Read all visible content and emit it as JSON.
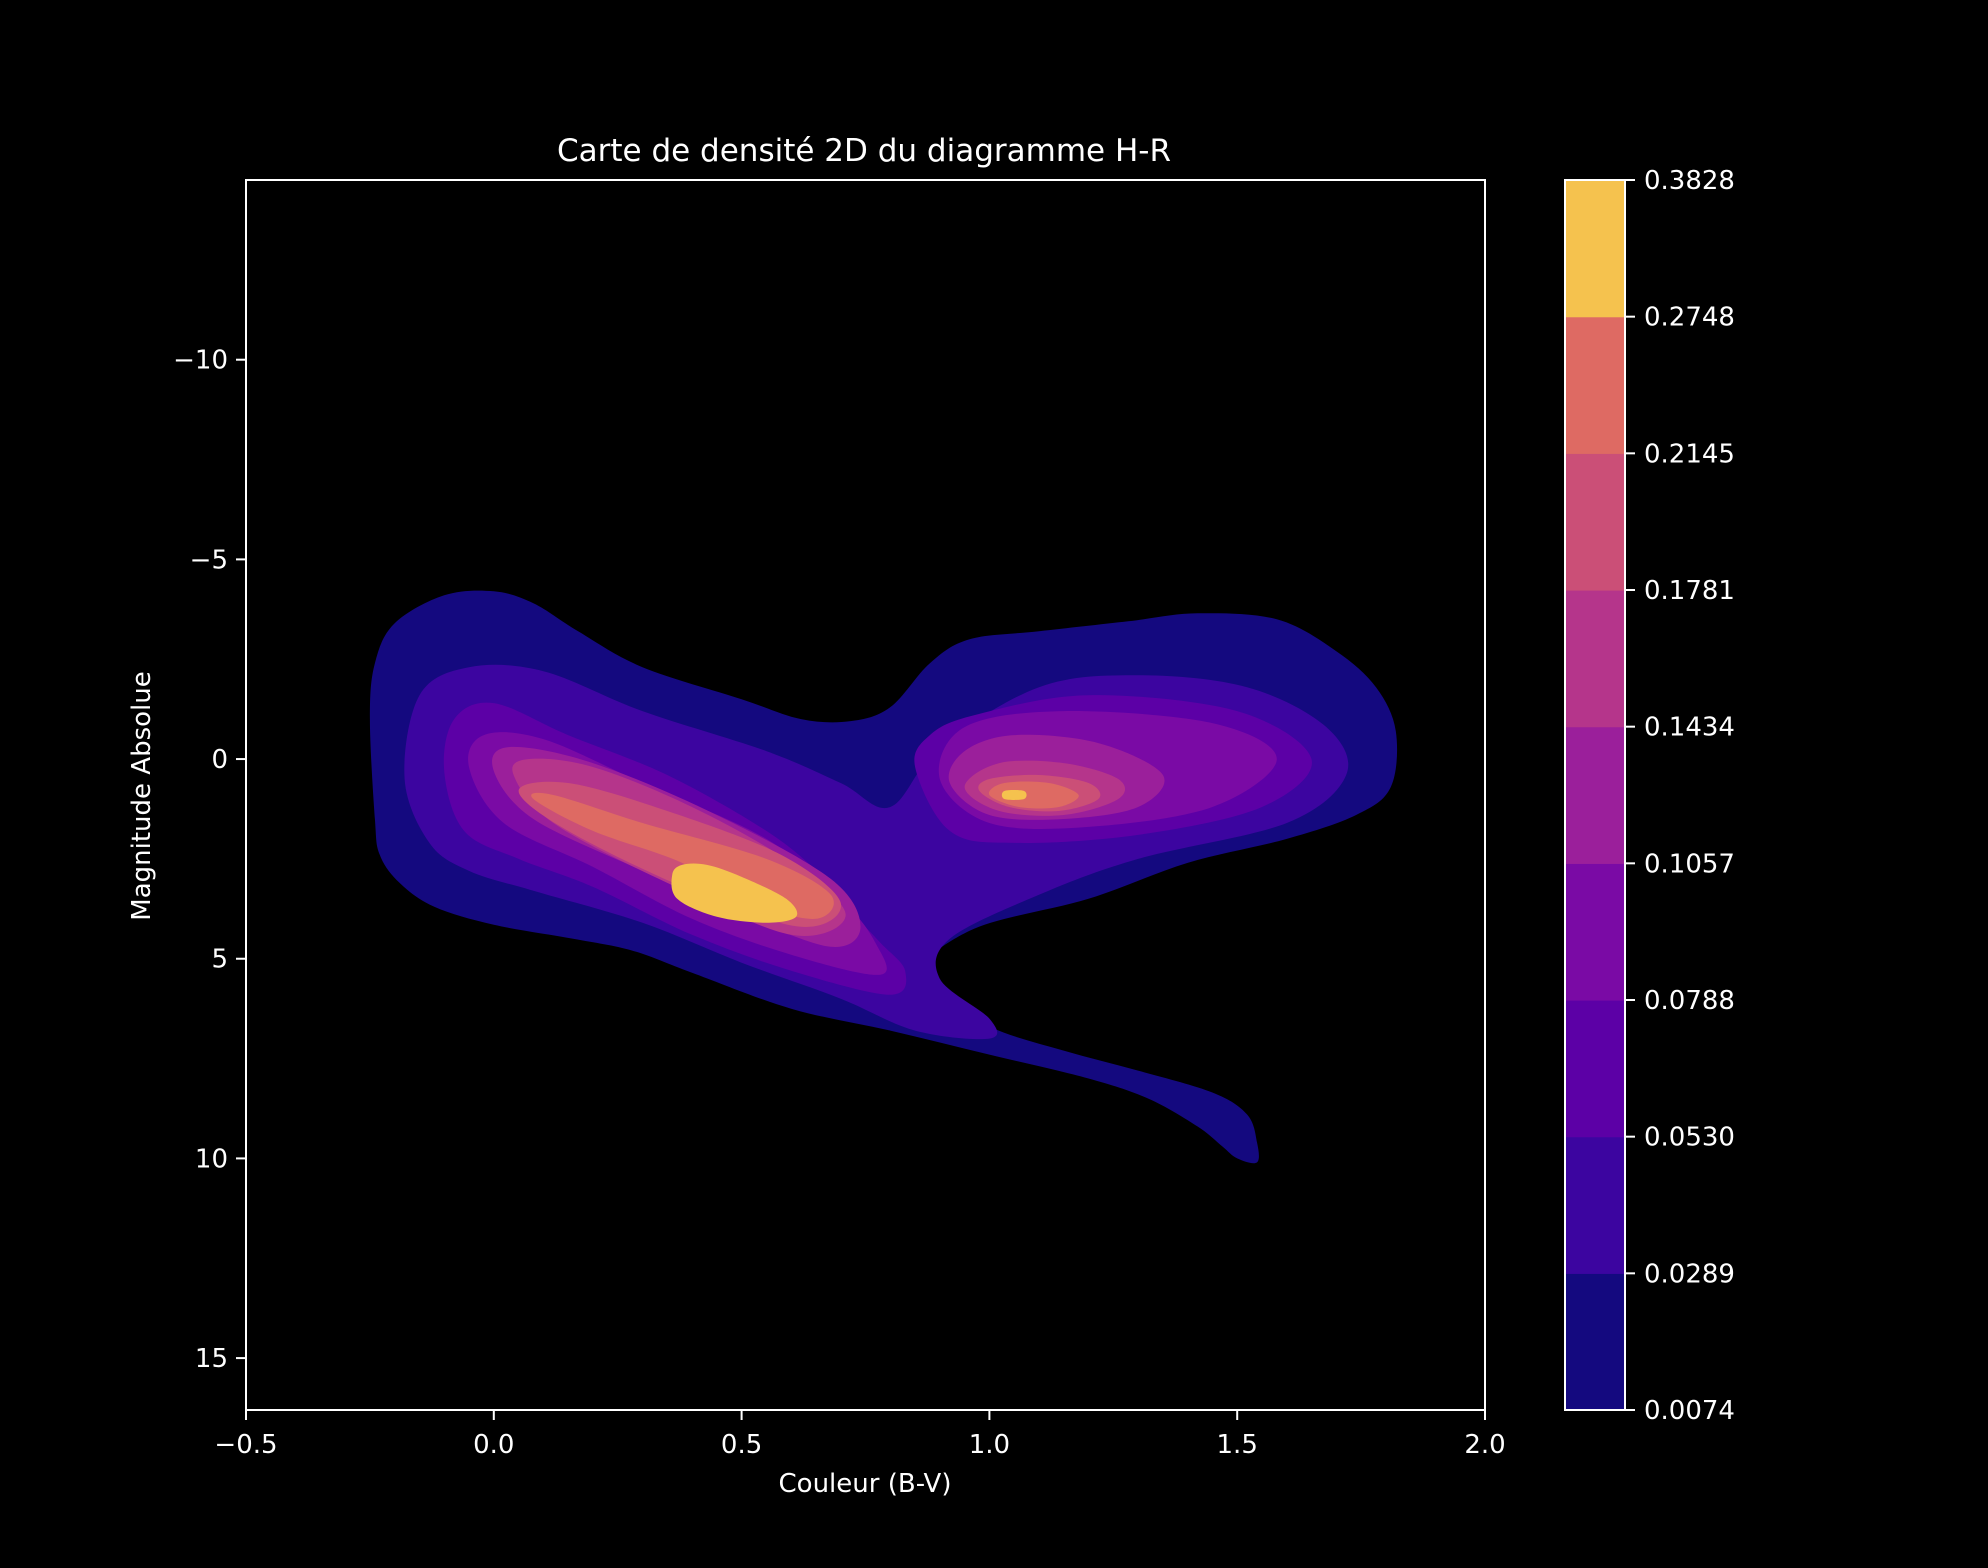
{
  "chart_data": {
    "type": "heatmap",
    "subtype": "filled-contour-density",
    "title": "Carte de densité 2D du diagramme H-R",
    "xlabel": "Couleur (B-V)",
    "ylabel": "Magnitude Absolue",
    "xlim": [
      -0.5,
      2.0
    ],
    "ylim": [
      16.3,
      -14.5
    ],
    "y_inverted": true,
    "grid": false,
    "x_ticks": [
      {
        "value": -0.5,
        "label": "−0.5"
      },
      {
        "value": 0.0,
        "label": "0.0"
      },
      {
        "value": 0.5,
        "label": "0.5"
      },
      {
        "value": 1.0,
        "label": "1.0"
      },
      {
        "value": 1.5,
        "label": "1.5"
      },
      {
        "value": 2.0,
        "label": "2.0"
      }
    ],
    "y_ticks": [
      {
        "value": -10,
        "label": "−10"
      },
      {
        "value": -5,
        "label": "−5"
      },
      {
        "value": 0,
        "label": "0"
      },
      {
        "value": 5,
        "label": "5"
      },
      {
        "value": 10,
        "label": "10"
      },
      {
        "value": 15,
        "label": "15"
      }
    ],
    "colorbar": {
      "levels": [
        "0.0074",
        "0.0289",
        "0.0530",
        "0.0788",
        "0.1057",
        "0.1434",
        "0.1781",
        "0.2145",
        "0.2748",
        "0.3828"
      ],
      "colors": [
        "#14097f",
        "#3c05a0",
        "#5c00a6",
        "#7a0aa5",
        "#9b1f9b",
        "#b5358b",
        "#cb4f77",
        "#de6a63",
        "#f5c24e"
      ]
    },
    "contours": [
      {
        "level": 0.0074,
        "color": "#14097f",
        "polygons": [
          [
            [
              -0.24,
              1.5
            ],
            [
              -0.23,
              2.4
            ],
            [
              -0.19,
              3.1
            ],
            [
              -0.12,
              3.7
            ],
            [
              0.0,
              4.15
            ],
            [
              0.16,
              4.5
            ],
            [
              0.28,
              4.8
            ],
            [
              0.4,
              5.35
            ],
            [
              0.6,
              6.25
            ],
            [
              0.8,
              6.8
            ],
            [
              1.0,
              7.4
            ],
            [
              1.2,
              8.0
            ],
            [
              1.32,
              8.5
            ],
            [
              1.42,
              9.2
            ],
            [
              1.47,
              9.7
            ],
            [
              1.5,
              10.0
            ],
            [
              1.54,
              10.1
            ],
            [
              1.54,
              9.6
            ],
            [
              1.52,
              8.9
            ],
            [
              1.45,
              8.35
            ],
            [
              1.3,
              7.8
            ],
            [
              1.15,
              7.3
            ],
            [
              1.0,
              6.7
            ],
            [
              0.85,
              5.6
            ],
            [
              0.96,
              4.3
            ],
            [
              1.2,
              3.5
            ],
            [
              1.4,
              2.6
            ],
            [
              1.6,
              2.0
            ],
            [
              1.74,
              1.4
            ],
            [
              1.81,
              0.7
            ],
            [
              1.82,
              -0.7
            ],
            [
              1.78,
              -1.8
            ],
            [
              1.7,
              -2.7
            ],
            [
              1.58,
              -3.5
            ],
            [
              1.42,
              -3.65
            ],
            [
              1.28,
              -3.45
            ],
            [
              1.1,
              -3.2
            ],
            [
              0.96,
              -3.0
            ],
            [
              0.88,
              -2.4
            ],
            [
              0.8,
              -1.3
            ],
            [
              0.72,
              -0.95
            ],
            [
              0.62,
              -1.0
            ],
            [
              0.5,
              -1.5
            ],
            [
              0.3,
              -2.3
            ],
            [
              0.17,
              -3.2
            ],
            [
              0.08,
              -3.9
            ],
            [
              0.0,
              -4.2
            ],
            [
              -0.1,
              -4.1
            ],
            [
              -0.2,
              -3.4
            ],
            [
              -0.24,
              -2.4
            ],
            [
              -0.25,
              -1.0
            ]
          ]
        ]
      },
      {
        "level": 0.0289,
        "color": "#3c05a0",
        "polygons": [
          [
            [
              -0.18,
              0.5
            ],
            [
              -0.13,
              2.1
            ],
            [
              -0.05,
              2.8
            ],
            [
              0.08,
              3.3
            ],
            [
              0.3,
              4.1
            ],
            [
              0.5,
              5.1
            ],
            [
              0.7,
              6.0
            ],
            [
              0.85,
              6.8
            ],
            [
              1.0,
              7.0
            ],
            [
              1.0,
              6.5
            ],
            [
              0.9,
              5.5
            ],
            [
              0.92,
              4.5
            ],
            [
              1.1,
              3.4
            ],
            [
              1.3,
              2.5
            ],
            [
              1.6,
              1.6
            ],
            [
              1.72,
              0.4
            ],
            [
              1.68,
              -0.8
            ],
            [
              1.52,
              -1.8
            ],
            [
              1.3,
              -2.1
            ],
            [
              1.1,
              -1.8
            ],
            [
              0.9,
              -0.3
            ],
            [
              0.8,
              1.2
            ],
            [
              0.7,
              0.6
            ],
            [
              0.55,
              -0.2
            ],
            [
              0.3,
              -1.2
            ],
            [
              0.1,
              -2.2
            ],
            [
              -0.05,
              -2.3
            ],
            [
              -0.15,
              -1.6
            ]
          ]
        ]
      },
      {
        "level": 0.053,
        "color": "#5c00a6",
        "polygons": [
          [
            [
              -0.1,
              0.3
            ],
            [
              -0.06,
              1.8
            ],
            [
              0.05,
              2.5
            ],
            [
              0.2,
              3.2
            ],
            [
              0.4,
              4.4
            ],
            [
              0.6,
              5.3
            ],
            [
              0.8,
              5.9
            ],
            [
              0.83,
              5.3
            ],
            [
              0.78,
              4.6
            ],
            [
              0.72,
              3.8
            ],
            [
              0.66,
              2.9
            ],
            [
              0.55,
              1.8
            ],
            [
              0.35,
              0.4
            ],
            [
              0.15,
              -0.6
            ],
            [
              0.0,
              -1.4
            ],
            [
              -0.08,
              -1.0
            ]
          ],
          [
            [
              0.85,
              0.2
            ],
            [
              0.92,
              1.8
            ],
            [
              1.05,
              2.1
            ],
            [
              1.3,
              1.9
            ],
            [
              1.55,
              1.2
            ],
            [
              1.65,
              0.0
            ],
            [
              1.5,
              -1.2
            ],
            [
              1.2,
              -1.6
            ],
            [
              0.97,
              -1.1
            ],
            [
              0.88,
              -0.6
            ]
          ]
        ]
      },
      {
        "level": 0.0788,
        "color": "#7a0aa5",
        "polygons": [
          [
            [
              -0.05,
              0.2
            ],
            [
              0.02,
              1.6
            ],
            [
              0.2,
              2.7
            ],
            [
              0.4,
              4.0
            ],
            [
              0.6,
              4.9
            ],
            [
              0.78,
              5.4
            ],
            [
              0.77,
              4.6
            ],
            [
              0.7,
              3.5
            ],
            [
              0.55,
              2.0
            ],
            [
              0.3,
              0.6
            ],
            [
              0.1,
              -0.5
            ],
            [
              -0.02,
              -0.6
            ]
          ],
          [
            [
              0.9,
              0.5
            ],
            [
              1.0,
              1.6
            ],
            [
              1.2,
              1.7
            ],
            [
              1.45,
              1.2
            ],
            [
              1.58,
              0.0
            ],
            [
              1.45,
              -0.9
            ],
            [
              1.15,
              -1.2
            ],
            [
              0.95,
              -0.8
            ]
          ]
        ]
      },
      {
        "level": 0.1057,
        "color": "#9b1f9b",
        "polygons": [
          [
            [
              0.0,
              0.3
            ],
            [
              0.08,
              1.5
            ],
            [
              0.3,
              2.8
            ],
            [
              0.5,
              3.9
            ],
            [
              0.68,
              4.7
            ],
            [
              0.74,
              4.2
            ],
            [
              0.68,
              3.0
            ],
            [
              0.45,
              1.4
            ],
            [
              0.2,
              0.1
            ],
            [
              0.03,
              -0.3
            ]
          ],
          [
            [
              0.92,
              0.6
            ],
            [
              1.0,
              1.4
            ],
            [
              1.15,
              1.5
            ],
            [
              1.3,
              1.2
            ],
            [
              1.35,
              0.4
            ],
            [
              1.22,
              -0.4
            ],
            [
              1.05,
              -0.6
            ],
            [
              0.95,
              -0.2
            ]
          ]
        ]
      },
      {
        "level": 0.1434,
        "color": "#b5358b",
        "polygons": [
          [
            [
              0.04,
              0.4
            ],
            [
              0.12,
              1.6
            ],
            [
              0.35,
              3.1
            ],
            [
              0.6,
              4.4
            ],
            [
              0.71,
              3.9
            ],
            [
              0.6,
              2.6
            ],
            [
              0.4,
              1.2
            ],
            [
              0.2,
              0.2
            ],
            [
              0.07,
              0.0
            ]
          ],
          [
            [
              0.95,
              0.7
            ],
            [
              1.02,
              1.3
            ],
            [
              1.15,
              1.4
            ],
            [
              1.26,
              1.0
            ],
            [
              1.26,
              0.5
            ],
            [
              1.15,
              0.1
            ],
            [
              1.02,
              0.1
            ]
          ]
        ]
      },
      {
        "level": 0.1781,
        "color": "#cb4f77",
        "polygons": [
          [
            [
              0.05,
              0.8
            ],
            [
              0.15,
              1.8
            ],
            [
              0.4,
              3.3
            ],
            [
              0.62,
              4.2
            ],
            [
              0.7,
              3.6
            ],
            [
              0.58,
              2.4
            ],
            [
              0.35,
              1.3
            ],
            [
              0.15,
              0.6
            ]
          ],
          [
            [
              0.98,
              0.8
            ],
            [
              1.04,
              1.2
            ],
            [
              1.14,
              1.3
            ],
            [
              1.22,
              1.0
            ],
            [
              1.2,
              0.6
            ],
            [
              1.1,
              0.4
            ],
            [
              1.0,
              0.5
            ]
          ]
        ]
      },
      {
        "level": 0.2145,
        "color": "#de6a63",
        "polygons": [
          [
            [
              0.08,
              1.0
            ],
            [
              0.2,
              1.8
            ],
            [
              0.38,
              2.6
            ],
            [
              0.52,
              3.6
            ],
            [
              0.65,
              4.0
            ],
            [
              0.68,
              3.4
            ],
            [
              0.55,
              2.5
            ],
            [
              0.3,
              1.6
            ],
            [
              0.12,
              0.9
            ]
          ],
          [
            [
              1.0,
              0.9
            ],
            [
              1.06,
              1.2
            ],
            [
              1.14,
              1.2
            ],
            [
              1.18,
              0.9
            ],
            [
              1.12,
              0.6
            ],
            [
              1.03,
              0.6
            ]
          ]
        ]
      },
      {
        "level": 0.2748,
        "color": "#f5c24e",
        "polygons": [
          [
            [
              0.36,
              2.9
            ],
            [
              0.37,
              3.5
            ],
            [
              0.45,
              3.95
            ],
            [
              0.55,
              4.1
            ],
            [
              0.61,
              3.95
            ],
            [
              0.59,
              3.5
            ],
            [
              0.5,
              2.95
            ],
            [
              0.43,
              2.65
            ],
            [
              0.38,
              2.65
            ]
          ],
          [
            [
              1.03,
              0.8
            ],
            [
              1.03,
              1.0
            ],
            [
              1.07,
              1.0
            ],
            [
              1.07,
              0.8
            ]
          ]
        ]
      }
    ]
  }
}
